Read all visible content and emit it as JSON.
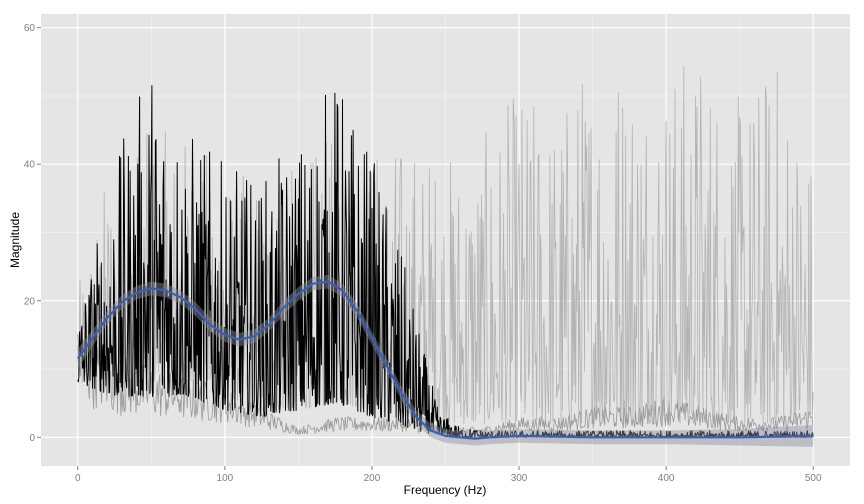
{
  "chart_data": {
    "type": "line",
    "title": "",
    "xlabel": "Frequency (Hz)",
    "ylabel": "Magnitude",
    "xlim": [
      -25,
      525
    ],
    "ylim": [
      -4.2,
      62
    ],
    "x_ticks": [
      0,
      100,
      200,
      300,
      400,
      500
    ],
    "y_ticks": [
      0,
      20,
      40,
      60
    ],
    "grid": true,
    "legend": "none",
    "colors": {
      "panel": "#e5e5e5",
      "grid_major": "#ffffff",
      "grid_minor": "#f0f0f0",
      "filtered": "#000000",
      "raw": "#b3b3b3",
      "mid": "#999999",
      "smooth": "#3d5fb3",
      "smooth_band": "#8a8fa0"
    },
    "series": [
      {
        "description_key": "raw",
        "x": [
          0,
          25,
          50,
          75,
          100,
          125,
          150,
          175,
          200,
          225,
          250,
          275,
          300,
          325,
          350,
          375,
          400,
          425,
          450,
          475,
          500
        ],
        "y_low": [
          8,
          5,
          8,
          8,
          6,
          4,
          4,
          5,
          4,
          3,
          2,
          2,
          2,
          2,
          2,
          2,
          2,
          2,
          2,
          2,
          2
        ],
        "y_high": [
          22,
          44,
          45,
          45,
          40,
          38,
          40,
          45,
          44,
          44,
          42,
          44,
          52,
          48,
          58,
          58,
          56,
          58,
          50,
          57,
          42
        ]
      },
      {
        "description_key": "mid",
        "x": [
          0,
          25,
          50,
          75,
          100,
          125,
          150,
          175,
          200,
          225,
          250,
          275,
          300,
          325,
          350,
          375,
          400,
          425,
          450,
          475,
          500
        ],
        "y": [
          12,
          8,
          7,
          6,
          5,
          3,
          1,
          2,
          2,
          2,
          1,
          1,
          2,
          2,
          3,
          3,
          4,
          3,
          2,
          2,
          3
        ]
      },
      {
        "description_key": "filtered",
        "x": [
          0,
          25,
          50,
          75,
          100,
          125,
          150,
          175,
          200,
          215,
          230,
          245,
          260,
          280,
          300,
          350,
          400,
          450,
          500
        ],
        "y_low": [
          8,
          6,
          6,
          6,
          4,
          3,
          4,
          5,
          3,
          2,
          1,
          0.3,
          0,
          0,
          0,
          0,
          0,
          0,
          0
        ],
        "y_high": [
          18,
          40,
          56,
          46,
          40,
          38,
          44,
          54,
          42,
          32,
          18,
          4,
          1.5,
          1,
          1,
          1,
          1,
          1,
          1
        ]
      },
      {
        "description_key": "smooth",
        "x": [
          0,
          10,
          20,
          30,
          40,
          50,
          60,
          70,
          80,
          90,
          100,
          110,
          120,
          130,
          140,
          150,
          160,
          170,
          180,
          190,
          200,
          210,
          220,
          230,
          240,
          250,
          260,
          270,
          280,
          300,
          350,
          400,
          450,
          500
        ],
        "y": [
          11.5,
          14.5,
          17.5,
          19.8,
          21.2,
          21.8,
          21.5,
          20.5,
          18.8,
          16.5,
          15,
          14.3,
          14.8,
          16.5,
          19,
          21,
          22.5,
          22.8,
          21.5,
          18.5,
          14.5,
          10.5,
          6.5,
          3,
          1,
          0.2,
          0,
          -0.2,
          0,
          0.2,
          0,
          0,
          0,
          0.2
        ],
        "band": [
          1.5,
          1.2,
          1,
          1,
          1,
          1,
          1,
          1,
          1,
          1,
          1,
          1,
          1,
          1,
          1,
          1,
          1,
          1,
          1,
          1,
          1,
          1,
          1,
          1,
          1,
          1,
          1,
          1,
          1,
          1,
          1,
          1,
          1.2,
          1.6
        ]
      }
    ]
  }
}
